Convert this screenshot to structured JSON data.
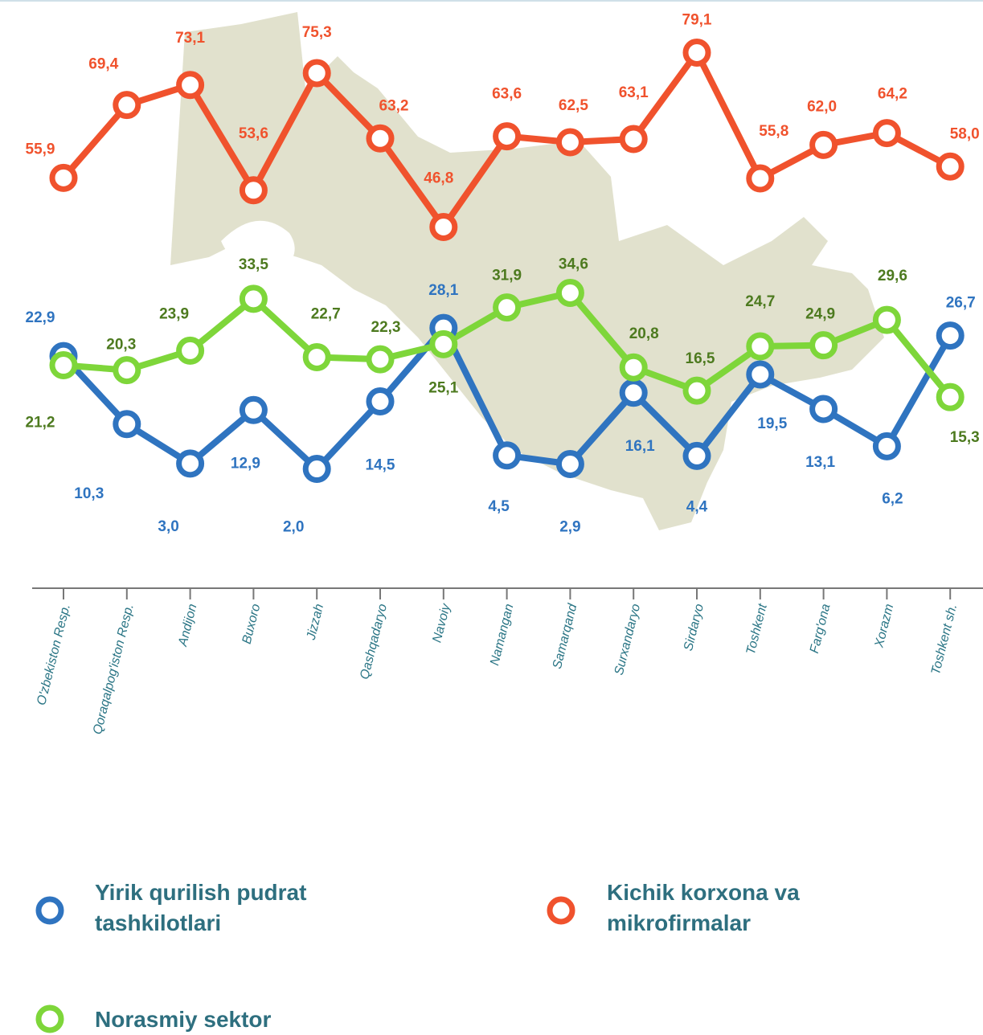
{
  "chart_data": {
    "type": "line",
    "categories": [
      "O'zbekiston Resp.",
      "Qoraqalpog'iston Resp.",
      "Andijon",
      "Buxoro",
      "Jizzah",
      "Qashqadaryo",
      "Navoiy",
      "Namangan",
      "Samarqand",
      "Surxandaryo",
      "Sirdaryo",
      "Toshkent",
      "Farg'ona",
      "Xorazm",
      "Toshkent sh."
    ],
    "series": [
      {
        "name": "Yirik qurilish pudrat tashkilotlari",
        "color": "#2f74c0",
        "label_color": "#2f74c0",
        "values": [
          22.9,
          10.3,
          3.0,
          12.9,
          2.0,
          14.5,
          28.1,
          4.5,
          2.9,
          16.1,
          4.4,
          19.5,
          13.1,
          6.2,
          26.7
        ],
        "value_labels": [
          "22,9",
          "10,3",
          "3,0",
          "12,9",
          "2,0",
          "14,5",
          "28,1",
          "4,5",
          "2,9",
          "16,1",
          "4,4",
          "19,5",
          "13,1",
          "6,2",
          "26,7"
        ]
      },
      {
        "name": "Kichik korxona va mikrofirmalar",
        "color": "#f0522d",
        "label_color": "#f0522d",
        "values": [
          55.9,
          69.4,
          73.1,
          53.6,
          75.3,
          63.2,
          46.8,
          63.6,
          62.5,
          63.1,
          79.1,
          55.8,
          62.0,
          64.2,
          58.0
        ],
        "value_labels": [
          "55,9",
          "69,4",
          "73,1",
          "53,6",
          "75,3",
          "63,2",
          "46,8",
          "63,6",
          "62,5",
          "63,1",
          "79,1",
          "55,8",
          "62,0",
          "64,2",
          "58,0"
        ]
      },
      {
        "name": "Norasmiy sektor",
        "color": "#7ed63a",
        "label_color": "#4d7a1f",
        "values": [
          21.2,
          20.3,
          23.9,
          33.5,
          22.7,
          22.3,
          25.1,
          31.9,
          34.6,
          20.8,
          16.5,
          24.7,
          24.9,
          29.6,
          15.3
        ],
        "value_labels": [
          "21,2",
          "20,3",
          "23,9",
          "33,5",
          "22,7",
          "22,3",
          "25,1",
          "31,9",
          "34,6",
          "20,8",
          "16,5",
          "24,7",
          "24,9",
          "29,6",
          "15,3"
        ]
      }
    ]
  }
}
